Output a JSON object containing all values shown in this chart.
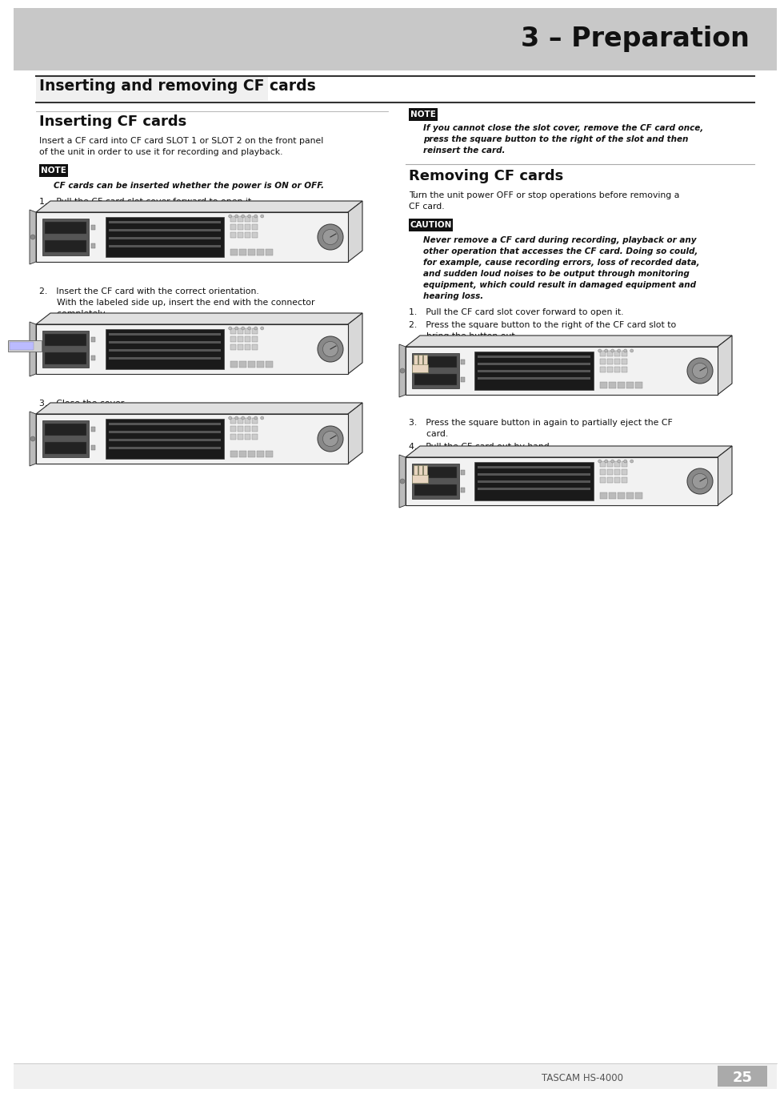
{
  "page_bg": "#ffffff",
  "header_bg": "#c8c8c8",
  "header_text": "3 – Preparation",
  "header_text_color": "#111111",
  "section_title": "Inserting and removing CF cards",
  "subsection_left": "Inserting CF cards",
  "insert_body1": "Insert a CF card into CF card SLOT 1 or SLOT 2 on the front panel",
  "insert_body2": "of the unit in order to use it for recording and playback.",
  "note_label": "NOTE",
  "note_bg": "#111111",
  "note_text_insert": "CF cards can be inserted whether the power is ON or OFF.",
  "step1_insert": "1.  Pull the CF card slot cover forward to open it.",
  "step2_insert_a": "2.  Insert the CF card with the correct orientation.",
  "step2_insert_b": "    With the labeled side up, insert the end with the connector",
  "step2_insert_c": "    completely.",
  "step3_insert": "3.  Close the cover.",
  "note_text_right1": "If you cannot close the slot cover, remove the CF card once,",
  "note_text_right2": "press the square button to the right of the slot and then",
  "note_text_right3": "reinsert the card.",
  "subsection_right": "Removing CF cards",
  "remove_body1": "Turn the unit power OFF or stop operations before removing a",
  "remove_body2": "CF card.",
  "caution_label": "CAUTION",
  "caution_bg": "#111111",
  "caution_text1": "Never remove a CF card during recording, playback or any",
  "caution_text2": "other operation that accesses the CF card. Doing so could,",
  "caution_text3": "for example, cause recording errors, loss of recorded data,",
  "caution_text4": "and sudden loud noises to be output through monitoring",
  "caution_text5": "equipment, which could result in damaged equipment and",
  "caution_text6": "hearing loss.",
  "step1_remove": "1.  Pull the CF card slot cover forward to open it.",
  "step2_remove1": "2.  Press the square button to the right of the CF card slot to",
  "step2_remove2": "    bring the button out.",
  "step3_remove1": "3.  Press the square button in again to partially eject the CF",
  "step3_remove2": "    card.",
  "step4_remove": "4.  Pull the CF card out by hand.",
  "footer_brand": "TASCAM HS-4000",
  "page_number": "25"
}
